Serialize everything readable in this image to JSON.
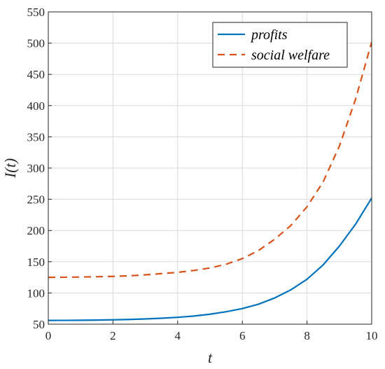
{
  "chart_data": {
    "type": "line",
    "title": "",
    "xlabel": "t",
    "ylabel": "I(t)",
    "xlim": [
      0,
      10
    ],
    "ylim": [
      50,
      550
    ],
    "xticks": [
      0,
      2,
      4,
      6,
      8,
      10
    ],
    "yticks": [
      50,
      100,
      150,
      200,
      250,
      300,
      350,
      400,
      450,
      500,
      550
    ],
    "grid": true,
    "legend_position": "top-right",
    "x": [
      0,
      0.5,
      1,
      1.5,
      2,
      2.5,
      3,
      3.5,
      4,
      4.5,
      5,
      5.5,
      6,
      6.5,
      7,
      7.5,
      8,
      8.5,
      9,
      9.5,
      10
    ],
    "series": [
      {
        "name": "profits",
        "color": "#0072BD",
        "style": "solid",
        "values": [
          56,
          56.1,
          56.3,
          56.6,
          57,
          57.6,
          58.4,
          59.5,
          61,
          63,
          66,
          70,
          75,
          82,
          92,
          105,
          122,
          145,
          175,
          210,
          252
        ]
      },
      {
        "name": "social welfare",
        "color": "#D95319",
        "style": "dashed",
        "values": [
          125,
          125.2,
          125.5,
          126,
          126.5,
          127.5,
          129,
          131,
          133,
          136,
          140,
          146,
          155,
          168,
          186,
          208,
          238,
          278,
          335,
          410,
          502
        ]
      }
    ]
  }
}
